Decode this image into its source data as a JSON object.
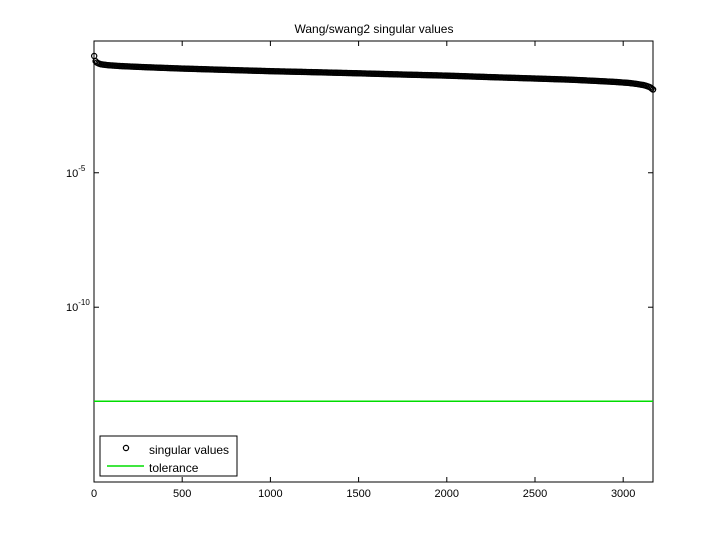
{
  "chart_data": {
    "type": "scatter",
    "title": "Wang/swang2 singular values",
    "xlabel": "",
    "ylabel": "",
    "xlim": [
      0,
      3169
    ],
    "ylim_log10": [
      -16.5,
      -0.1
    ],
    "y_scale": "log",
    "x_ticks": [
      {
        "value": 0,
        "label": "0"
      },
      {
        "value": 500,
        "label": "500"
      },
      {
        "value": 1000,
        "label": "1000"
      },
      {
        "value": 1500,
        "label": "1500"
      },
      {
        "value": 2000,
        "label": "2000"
      },
      {
        "value": 2500,
        "label": "2500"
      },
      {
        "value": 3000,
        "label": "3000"
      }
    ],
    "y_ticks": [
      {
        "log10": -5,
        "base": "10",
        "exp": "-5"
      },
      {
        "log10": -10,
        "base": "10",
        "exp": "-10"
      }
    ],
    "grid": false,
    "legend_position": "bottom-left",
    "series": [
      {
        "name": "singular values",
        "marker": "circle",
        "color": "#000000",
        "n": 3169,
        "x": [
          1,
          5,
          10,
          20,
          40,
          80,
          150,
          300,
          500,
          750,
          1000,
          1250,
          1500,
          1750,
          2000,
          2250,
          2500,
          2700,
          2850,
          2950,
          3030,
          3080,
          3120,
          3150,
          3169
        ],
        "y": [
          0.22,
          0.17,
          0.135,
          0.12,
          0.108,
          0.1,
          0.093,
          0.084,
          0.075,
          0.067,
          0.06,
          0.055,
          0.05,
          0.045,
          0.041,
          0.036,
          0.032,
          0.029,
          0.026,
          0.024,
          0.022,
          0.02,
          0.018,
          0.0155,
          0.0125
        ]
      },
      {
        "name": "tolerance",
        "marker": "line",
        "color": "#00dd00",
        "y_constant": 3.2e-14
      }
    ]
  }
}
